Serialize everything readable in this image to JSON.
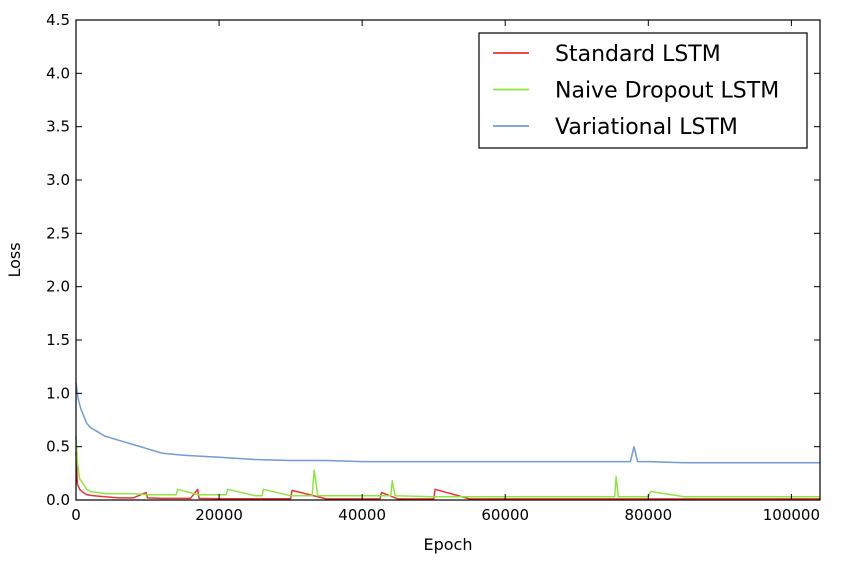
{
  "chart_data": {
    "type": "line",
    "xlabel": "Epoch",
    "ylabel": "Loss",
    "xlim": [
      0,
      104000
    ],
    "ylim": [
      0,
      4.5
    ],
    "x_ticks": [
      0,
      20000,
      40000,
      60000,
      80000,
      100000
    ],
    "y_ticks": [
      0.0,
      0.5,
      1.0,
      1.5,
      2.0,
      2.5,
      3.0,
      3.5,
      4.0,
      4.5
    ],
    "x_tick_labels": [
      "0",
      "20000",
      "40000",
      "60000",
      "80000",
      "100000"
    ],
    "y_tick_labels": [
      "0.0",
      "0.5",
      "1.0",
      "1.5",
      "2.0",
      "2.5",
      "3.0",
      "3.5",
      "4.0",
      "4.5"
    ],
    "grid": false,
    "legend_position": "top-right",
    "series": [
      {
        "name": "Standard LSTM",
        "color": "#e8352e",
        "x": [
          0,
          200,
          500,
          1000,
          1500,
          2500,
          4000,
          6000,
          8000,
          9800,
          10000,
          12000,
          16000,
          17000,
          17200,
          20000,
          25000,
          30000,
          30200,
          35000,
          40000,
          42500,
          42700,
          45000,
          50000,
          50200,
          55000,
          60000,
          70000,
          80000,
          90000,
          104000
        ],
        "y": [
          0.45,
          0.15,
          0.1,
          0.07,
          0.05,
          0.04,
          0.03,
          0.02,
          0.02,
          0.07,
          0.02,
          0.015,
          0.015,
          0.1,
          0.015,
          0.012,
          0.012,
          0.012,
          0.09,
          0.01,
          0.01,
          0.01,
          0.07,
          0.01,
          0.01,
          0.1,
          0.01,
          0.01,
          0.01,
          0.01,
          0.01,
          0.01
        ]
      },
      {
        "name": "Naive Dropout LSTM",
        "color": "#8ee53f",
        "x": [
          0,
          200,
          500,
          1000,
          1500,
          2000,
          3000,
          4000,
          6000,
          8000,
          10000,
          14000,
          14200,
          17000,
          20000,
          21000,
          21200,
          25000,
          26000,
          26200,
          30000,
          33000,
          33300,
          33800,
          35000,
          40000,
          44000,
          44200,
          44600,
          50000,
          55000,
          60000,
          65000,
          70000,
          75300,
          75500,
          75800,
          80000,
          80300,
          85000,
          90000,
          95000,
          100000,
          104000
        ],
        "y": [
          0.6,
          0.35,
          0.2,
          0.15,
          0.1,
          0.08,
          0.07,
          0.06,
          0.06,
          0.06,
          0.05,
          0.05,
          0.1,
          0.05,
          0.05,
          0.05,
          0.1,
          0.04,
          0.04,
          0.1,
          0.04,
          0.04,
          0.28,
          0.04,
          0.04,
          0.04,
          0.04,
          0.18,
          0.04,
          0.03,
          0.03,
          0.03,
          0.03,
          0.03,
          0.03,
          0.22,
          0.03,
          0.03,
          0.08,
          0.03,
          0.03,
          0.03,
          0.03,
          0.03
        ]
      },
      {
        "name": "Variational LSTM",
        "color": "#6f9dd4",
        "x": [
          0,
          300,
          700,
          1000,
          1500,
          2000,
          3000,
          4000,
          6000,
          8000,
          10000,
          12000,
          15000,
          20000,
          25000,
          30000,
          35000,
          40000,
          45000,
          50000,
          55000,
          60000,
          65000,
          70000,
          75000,
          77500,
          78000,
          78500,
          80000,
          85000,
          90000,
          95000,
          100000,
          104000
        ],
        "y": [
          1.1,
          0.95,
          0.85,
          0.8,
          0.72,
          0.68,
          0.64,
          0.6,
          0.56,
          0.52,
          0.48,
          0.44,
          0.42,
          0.4,
          0.38,
          0.37,
          0.37,
          0.36,
          0.36,
          0.36,
          0.36,
          0.36,
          0.36,
          0.36,
          0.36,
          0.36,
          0.5,
          0.36,
          0.36,
          0.35,
          0.35,
          0.35,
          0.35,
          0.35
        ]
      }
    ]
  }
}
